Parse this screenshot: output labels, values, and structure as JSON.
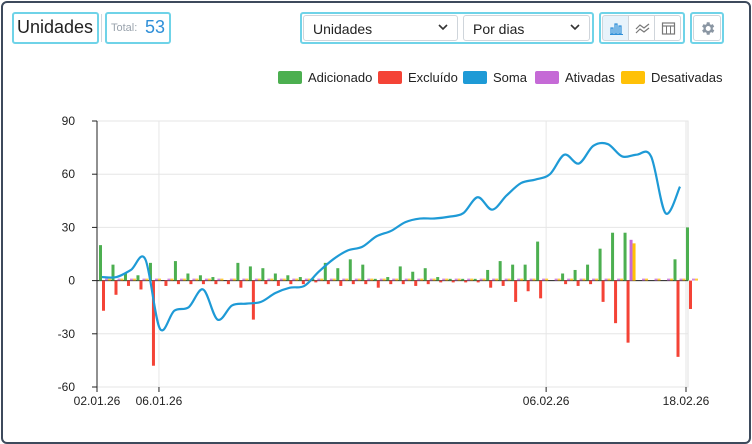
{
  "header": {
    "title": "Unidades",
    "total_label": "Total:",
    "total_value": "53"
  },
  "controls": {
    "metric_select": "Unidades",
    "period_select": "Por dias",
    "views": [
      "bar-chart-icon",
      "line-chart-icon",
      "table-icon"
    ],
    "active_view": "bar-chart-icon",
    "settings": "gear-icon"
  },
  "chart_data": {
    "type": "bar",
    "title": "",
    "xlabel": "",
    "ylabel": "",
    "ylim": [
      -60,
      90
    ],
    "yticks": [
      -60,
      -30,
      0,
      30,
      60,
      90
    ],
    "x_tick_labels": [
      {
        "label": "02.01.26",
        "index": 0
      },
      {
        "label": "06.01.26",
        "index": 4
      },
      {
        "label": "06.02.26",
        "index": 35
      },
      {
        "label": "18.02.26",
        "index": 47
      }
    ],
    "legend": {
      "position": "top-right"
    },
    "colors": {
      "Adicionado": "#4caf50",
      "Excluído": "#f44336",
      "Soma": "#1e9ad6",
      "Ativadas": "#c56ad6",
      "Desativadas": "#ffc107"
    },
    "series": [
      {
        "name": "Adicionado",
        "type": "bar",
        "values": [
          20,
          9,
          4,
          3,
          10,
          0,
          11,
          4,
          3,
          2,
          0,
          10,
          8,
          7,
          4,
          3,
          2,
          1,
          10,
          7,
          12,
          9,
          1,
          2,
          8,
          5,
          7,
          2,
          1,
          1,
          1,
          6,
          11,
          9,
          9,
          22,
          0,
          4,
          6,
          9,
          18,
          27,
          27,
          0,
          0,
          0,
          12,
          30
        ]
      },
      {
        "name": "Excluído",
        "type": "bar",
        "values": [
          -17,
          -8,
          -3,
          -5,
          -48,
          -3,
          -2,
          -2,
          -2,
          -2,
          -2,
          -4,
          -22,
          -2,
          -3,
          -2,
          -2,
          -1,
          -2,
          -3,
          -2,
          -2,
          -4,
          -2,
          -2,
          -3,
          -2,
          -1,
          -1,
          -1,
          -1,
          -4,
          -3,
          -12,
          -6,
          -10,
          0,
          -2,
          -3,
          -2,
          -12,
          -24,
          -35,
          0,
          0,
          0,
          -43,
          -16
        ]
      },
      {
        "name": "Ativadas",
        "type": "bar",
        "values": [
          0,
          0,
          0,
          0,
          0,
          0,
          0,
          0,
          0,
          0,
          0,
          0,
          0,
          0,
          0,
          0,
          0,
          0,
          0,
          0,
          0,
          0,
          0,
          0,
          0,
          0,
          0,
          0,
          0,
          0,
          0,
          0,
          0,
          0,
          0,
          0,
          0,
          0,
          0,
          0,
          0,
          0,
          23,
          0,
          0,
          0,
          0,
          0
        ]
      },
      {
        "name": "Desativadas",
        "type": "bar",
        "values": [
          0,
          0,
          0,
          0,
          0,
          0,
          0,
          0,
          0,
          0,
          0,
          0,
          0,
          0,
          0,
          0,
          0,
          0,
          0,
          0,
          0,
          0,
          0,
          0,
          0,
          0,
          0,
          0,
          0,
          0,
          0,
          0,
          0,
          0,
          0,
          0,
          0,
          0,
          0,
          0,
          0,
          0,
          21,
          0,
          0,
          0,
          0,
          0
        ]
      },
      {
        "name": "Soma",
        "type": "line",
        "values": [
          2,
          2,
          6,
          12,
          -27,
          -17,
          -15,
          -5,
          -22,
          -14,
          -13,
          -12,
          -7,
          -4,
          -3,
          5,
          12,
          17,
          19,
          25,
          28,
          33,
          35,
          35,
          36,
          38,
          47,
          40,
          48,
          55,
          57,
          60,
          71,
          66,
          76,
          77,
          70,
          71,
          70,
          38,
          53
        ]
      }
    ],
    "soma_x_index": [
      0,
      1,
      2,
      3,
      4,
      5,
      6,
      7,
      8,
      9,
      10,
      11,
      12,
      13,
      14,
      15,
      16,
      17,
      18,
      19,
      20,
      21,
      22,
      23,
      24,
      25,
      26,
      27,
      28,
      29,
      30,
      31,
      32,
      33,
      34,
      35,
      36,
      37,
      38,
      39,
      40
    ]
  }
}
